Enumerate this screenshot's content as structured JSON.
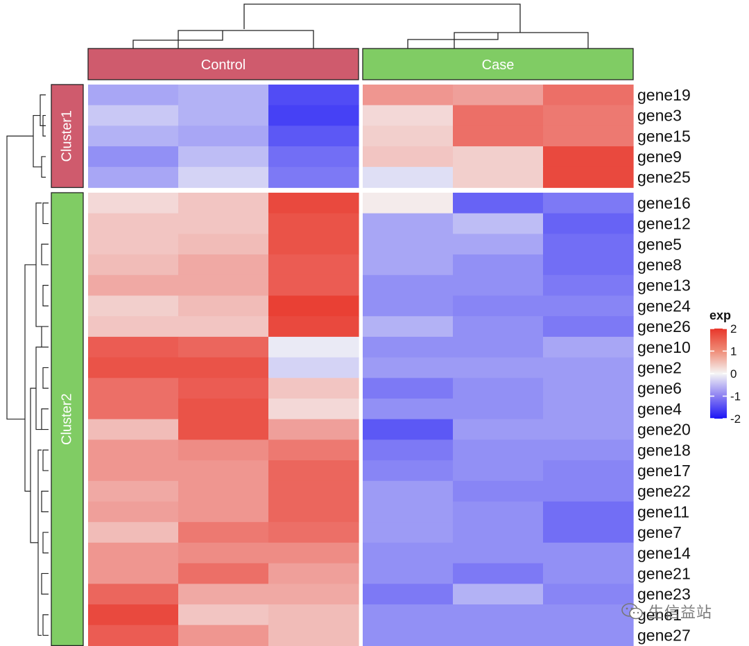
{
  "chart_data": {
    "type": "heatmap",
    "title": "",
    "legend": {
      "title": "exp",
      "ticks": [
        2,
        1,
        0,
        -1,
        -2
      ],
      "colors": {
        "high": "#e8362a",
        "mid": "#f5f5f5",
        "low": "#1a14f5"
      }
    },
    "column_groups": [
      {
        "name": "Control",
        "color": "#cf5b6d",
        "n": 3
      },
      {
        "name": "Case",
        "color": "#80cc64",
        "n": 3
      }
    ],
    "row_groups": [
      {
        "name": "Cluster1",
        "color": "#cf5b6d",
        "genes": [
          "gene19",
          "gene3",
          "gene15",
          "gene9",
          "gene25"
        ]
      },
      {
        "name": "Cluster2",
        "color": "#80cc64",
        "genes": [
          "gene16",
          "gene12",
          "gene5",
          "gene8",
          "gene13",
          "gene24",
          "gene26",
          "gene10",
          "gene2",
          "gene6",
          "gene4",
          "gene20",
          "gene18",
          "gene17",
          "gene22",
          "gene11",
          "gene7",
          "gene14",
          "gene21",
          "gene23",
          "gene1",
          "gene27"
        ]
      }
    ],
    "rows": [
      {
        "gene": "gene19",
        "values": [
          -0.7,
          -0.6,
          -1.5,
          1.0,
          0.9,
          1.4
        ]
      },
      {
        "gene": "gene3",
        "values": [
          -0.4,
          -0.6,
          -1.6,
          0.3,
          1.4,
          1.3
        ]
      },
      {
        "gene": "gene15",
        "values": [
          -0.6,
          -0.7,
          -1.4,
          0.4,
          1.4,
          1.3
        ]
      },
      {
        "gene": "gene9",
        "values": [
          -0.9,
          -0.5,
          -1.2,
          0.5,
          0.4,
          1.8
        ]
      },
      {
        "gene": "gene25",
        "values": [
          -0.7,
          -0.3,
          -1.1,
          -0.2,
          0.4,
          1.8
        ]
      },
      {
        "gene": "gene16",
        "values": [
          0.3,
          0.5,
          1.8,
          0.1,
          -1.3,
          -1.1
        ]
      },
      {
        "gene": "gene12",
        "values": [
          0.5,
          0.5,
          1.7,
          -0.7,
          -0.5,
          -1.3
        ]
      },
      {
        "gene": "gene5",
        "values": [
          0.5,
          0.6,
          1.7,
          -0.7,
          -0.7,
          -1.2
        ]
      },
      {
        "gene": "gene8",
        "values": [
          0.6,
          0.8,
          1.6,
          -0.7,
          -0.9,
          -1.2
        ]
      },
      {
        "gene": "gene13",
        "values": [
          0.8,
          0.8,
          1.6,
          -0.9,
          -0.9,
          -1.1
        ]
      },
      {
        "gene": "gene24",
        "values": [
          0.4,
          0.6,
          1.9,
          -0.9,
          -1.0,
          -1.0
        ]
      },
      {
        "gene": "gene26",
        "values": [
          0.5,
          0.5,
          1.8,
          -0.6,
          -0.9,
          -1.1
        ]
      },
      {
        "gene": "gene10",
        "values": [
          1.6,
          1.5,
          -0.1,
          -0.9,
          -0.9,
          -0.7
        ]
      },
      {
        "gene": "gene2",
        "values": [
          1.7,
          1.7,
          -0.3,
          -0.8,
          -0.8,
          -0.8
        ]
      },
      {
        "gene": "gene6",
        "values": [
          1.4,
          1.6,
          0.5,
          -1.1,
          -0.9,
          -0.8
        ]
      },
      {
        "gene": "gene4",
        "values": [
          1.4,
          1.7,
          0.3,
          -0.9,
          -0.9,
          -0.8
        ]
      },
      {
        "gene": "gene20",
        "values": [
          0.6,
          1.7,
          0.9,
          -1.4,
          -0.8,
          -0.8
        ]
      },
      {
        "gene": "gene18",
        "values": [
          1.0,
          1.1,
          1.3,
          -1.1,
          -0.9,
          -0.9
        ]
      },
      {
        "gene": "gene17",
        "values": [
          1.0,
          1.0,
          1.5,
          -1.0,
          -0.9,
          -1.0
        ]
      },
      {
        "gene": "gene22",
        "values": [
          0.8,
          1.0,
          1.5,
          -0.8,
          -1.0,
          -1.0
        ]
      },
      {
        "gene": "gene11",
        "values": [
          0.9,
          1.0,
          1.5,
          -0.8,
          -0.9,
          -1.2
        ]
      },
      {
        "gene": "gene7",
        "values": [
          0.6,
          1.3,
          1.4,
          -0.8,
          -0.9,
          -1.2
        ]
      },
      {
        "gene": "gene14",
        "values": [
          1.0,
          1.1,
          1.1,
          -0.9,
          -0.9,
          -0.9
        ]
      },
      {
        "gene": "gene21",
        "values": [
          1.0,
          1.4,
          0.9,
          -0.9,
          -1.1,
          -0.9
        ]
      },
      {
        "gene": "gene23",
        "values": [
          1.5,
          0.8,
          0.8,
          -1.1,
          -0.6,
          -1.0
        ]
      },
      {
        "gene": "gene1",
        "values": [
          1.8,
          0.5,
          0.6,
          -0.9,
          -0.9,
          -0.9
        ]
      },
      {
        "gene": "gene27",
        "values": [
          1.6,
          1.0,
          0.6,
          -0.9,
          -0.9,
          -0.9
        ]
      }
    ]
  },
  "watermark": {
    "text": "生信益站",
    "icon": "wechat-icon"
  }
}
